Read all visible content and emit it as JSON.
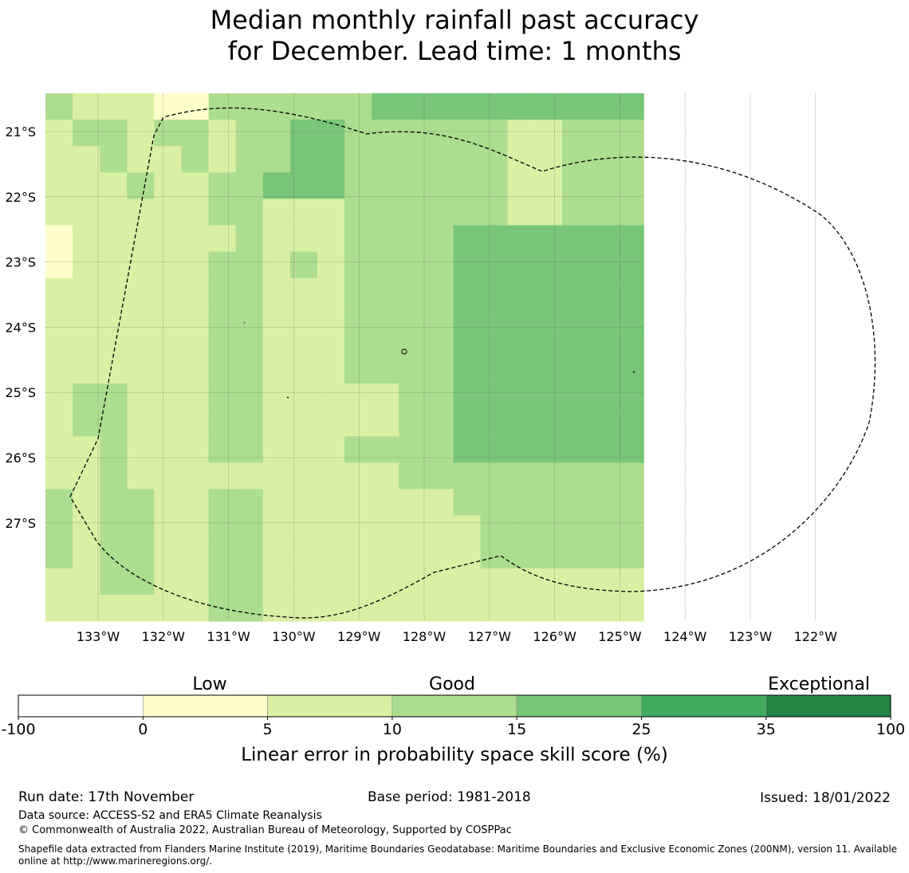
{
  "title": {
    "line1": "Median monthly rainfall past accuracy",
    "line2": "for December. Lead time: 1 months"
  },
  "map": {
    "lat_labels": [
      "21°S",
      "22°S",
      "23°S",
      "24°S",
      "25°S",
      "26°S",
      "27°S"
    ],
    "lon_labels": [
      "133°W",
      "132°W",
      "131°W",
      "130°W",
      "129°W",
      "128°W",
      "127°W",
      "126°W",
      "125°W",
      "124°W",
      "123°W",
      "122°W"
    ],
    "class_colors": [
      "#ffffff",
      "#ffffcc",
      "#d9f0a3",
      "#addd8e",
      "#78c679",
      "#41ab5d",
      "#238443"
    ],
    "grid_classes": [
      "3222113333334444444444",
      "2332332334433333322333",
      "2232232334433333322333",
      "2223223344433333322333",
      "2222223322233333322333",
      "1222222322233334444444",
      "1222223323233334444444",
      "2222223322233334444444",
      "2222223322233334444444",
      "2222223322233334444444",
      "2222223322233334444444",
      "2332223322222334444444",
      "2332223322222334444444",
      "2232223322233334444444",
      "2232222222222333333333",
      "3233223322222223333333",
      "3233223322222222333333",
      "3233223322222222333333",
      "2233223322222222222222",
      "2222223322222222222222"
    ]
  },
  "colorbar": {
    "category_labels": [
      "Low",
      "Good",
      "Exceptional"
    ],
    "boundaries": [
      "-100",
      "0",
      "5",
      "10",
      "15",
      "25",
      "35",
      "100"
    ],
    "colors": [
      "#ffffff",
      "#ffffcc",
      "#d9f0a3",
      "#addd8e",
      "#78c679",
      "#41ab5d",
      "#238443"
    ],
    "label": "Linear error in probability space skill score (%)"
  },
  "footer": {
    "run_date": "Run date: 17th November",
    "base_period": "Base period: 1981-2018",
    "issued": "Issued: 18/01/2022",
    "data_source": "Data source: ACCESS-S2 and ERA5 Climate Reanalysis",
    "copyright": "© Commonwealth of Australia 2022, Australian Bureau of Meteorology, Supported by COSPPac",
    "shapefile": "Shapefile data extracted from Flanders Marine Institute (2019), Maritime Boundaries Geodatabase: Maritime Boundaries and Exclusive Economic Zones (200NM), version 11. Available online at http://www.marineregions.org/."
  }
}
